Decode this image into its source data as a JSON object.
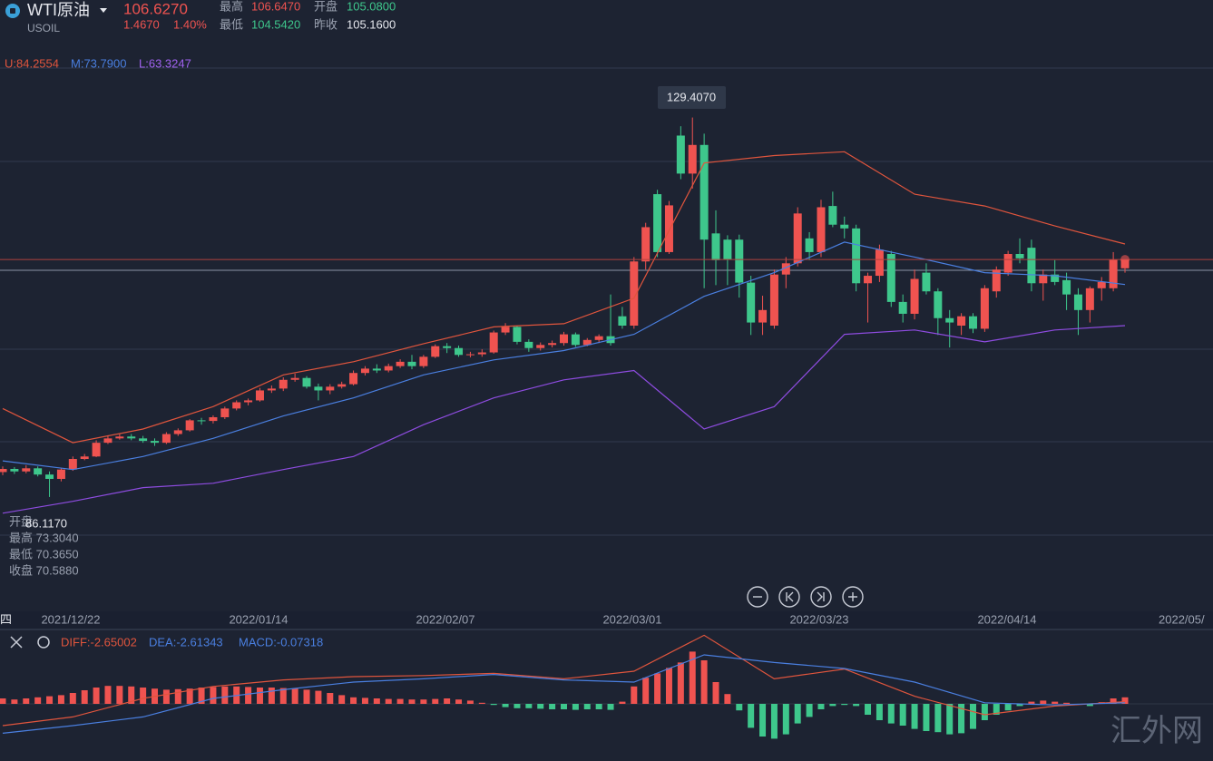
{
  "header": {
    "symbol": "WTI原油",
    "code": "USOIL",
    "price": "106.6270",
    "change": "1.4670",
    "change_pct": "1.40%",
    "high_label": "最高",
    "high": "106.6470",
    "open_label": "开盘",
    "open": "105.0800",
    "low_label": "最低",
    "low": "104.5420",
    "prev_close_label": "昨收",
    "prev_close": "105.1600"
  },
  "boll": {
    "upper": "U:84.2554",
    "middle": "M:73.7900",
    "lower": "L:63.3247"
  },
  "peak_label": "129.4070",
  "low_label": "86.1170",
  "ohlc_box": {
    "open_label": "开盘",
    "high": "最高 73.3040",
    "low": "最低 70.3650",
    "close": "收盘 70.5880"
  },
  "x_axis": [
    "四",
    "2021/12/22",
    "2022/01/14",
    "2022/02/07",
    "2022/03/01",
    "2022/03/23",
    "2022/04/14",
    "2022/05/"
  ],
  "macd_labels": {
    "diff": "DIFF:-2.65002",
    "dea": "DEA:-2.61343",
    "macd": "MACD:-0.07318"
  },
  "watermark": "汇外网",
  "chart_data": {
    "type": "candlestick",
    "up_color": "#ef5350",
    "down_color": "#3ec78c",
    "ylim": [
      50,
      142
    ],
    "candles": [
      [
        72.5,
        73.4,
        72.0,
        73.0
      ],
      [
        73.0,
        73.3,
        72.2,
        72.6
      ],
      [
        72.6,
        73.6,
        72.3,
        73.1
      ],
      [
        73.1,
        73.4,
        71.8,
        72.1
      ],
      [
        72.1,
        72.6,
        68.5,
        71.4
      ],
      [
        71.4,
        73.2,
        71.0,
        72.9
      ],
      [
        72.9,
        75.0,
        72.7,
        74.6
      ],
      [
        74.6,
        75.4,
        74.4,
        75.0
      ],
      [
        75.0,
        77.6,
        74.9,
        77.2
      ],
      [
        77.2,
        78.4,
        77.0,
        77.9
      ],
      [
        77.9,
        78.6,
        77.7,
        78.2
      ],
      [
        78.2,
        78.6,
        77.6,
        77.9
      ],
      [
        77.9,
        78.3,
        77.2,
        77.5
      ],
      [
        77.5,
        77.9,
        76.7,
        77.2
      ],
      [
        77.2,
        78.9,
        77.0,
        78.6
      ],
      [
        78.6,
        79.5,
        78.3,
        79.2
      ],
      [
        79.2,
        81.0,
        79.0,
        80.8
      ],
      [
        80.8,
        81.2,
        80.1,
        80.7
      ],
      [
        80.7,
        81.6,
        80.3,
        81.3
      ],
      [
        81.3,
        83.0,
        81.0,
        82.7
      ],
      [
        82.7,
        84.0,
        82.4,
        83.7
      ],
      [
        83.7,
        84.3,
        83.2,
        84.0
      ],
      [
        84.0,
        86.0,
        83.8,
        85.6
      ],
      [
        85.6,
        86.4,
        85.2,
        85.9
      ],
      [
        85.9,
        87.7,
        85.5,
        87.3
      ],
      [
        87.3,
        88.3,
        87.0,
        87.6
      ],
      [
        87.6,
        87.9,
        85.9,
        86.2
      ],
      [
        86.2,
        86.7,
        84.0,
        85.6
      ],
      [
        85.6,
        86.6,
        85.0,
        86.2
      ],
      [
        86.2,
        87.0,
        85.9,
        86.6
      ],
      [
        86.6,
        88.8,
        86.4,
        88.4
      ],
      [
        88.4,
        89.5,
        88.0,
        89.1
      ],
      [
        89.1,
        89.8,
        88.4,
        88.8
      ],
      [
        88.8,
        89.9,
        88.5,
        89.5
      ],
      [
        89.5,
        90.6,
        89.2,
        90.2
      ],
      [
        90.2,
        91.3,
        89.0,
        89.5
      ],
      [
        89.5,
        91.3,
        89.2,
        91.0
      ],
      [
        91.0,
        93.0,
        90.8,
        92.7
      ],
      [
        92.7,
        93.2,
        91.6,
        92.4
      ],
      [
        92.4,
        92.8,
        91.0,
        91.3
      ],
      [
        91.3,
        91.8,
        90.9,
        91.4
      ],
      [
        91.4,
        92.2,
        91.0,
        91.7
      ],
      [
        91.7,
        95.2,
        91.5,
        94.9
      ],
      [
        94.9,
        96.4,
        94.5,
        95.8
      ],
      [
        95.8,
        96.0,
        93.0,
        93.4
      ],
      [
        93.4,
        93.8,
        91.8,
        92.4
      ],
      [
        92.4,
        93.3,
        92.0,
        92.9
      ],
      [
        92.9,
        93.6,
        92.5,
        93.2
      ],
      [
        93.2,
        95.0,
        92.8,
        94.6
      ],
      [
        94.6,
        94.9,
        92.6,
        92.9
      ],
      [
        92.9,
        94.0,
        92.7,
        93.7
      ],
      [
        93.7,
        94.6,
        93.2,
        94.3
      ],
      [
        94.3,
        101.0,
        92.8,
        93.2
      ],
      [
        97.5,
        99.0,
        95.5,
        96.0
      ],
      [
        96.0,
        107.0,
        95.5,
        106.3
      ],
      [
        106.3,
        112.5,
        105.0,
        111.8
      ],
      [
        117.1,
        117.8,
        107.0,
        107.8
      ],
      [
        107.8,
        116.0,
        107.5,
        115.3
      ],
      [
        126.5,
        128.0,
        119.5,
        120.4
      ],
      [
        120.4,
        129.4,
        118.0,
        125.0
      ],
      [
        125.0,
        126.8,
        102.0,
        109.8
      ],
      [
        110.8,
        114.5,
        102.5,
        106.5
      ],
      [
        109.8,
        110.5,
        102.5,
        106.6
      ],
      [
        109.8,
        110.6,
        100.5,
        102.9
      ],
      [
        102.9,
        104.0,
        94.5,
        96.5
      ],
      [
        96.5,
        100.8,
        94.5,
        98.5
      ],
      [
        96.0,
        105.0,
        95.5,
        104.2
      ],
      [
        104.2,
        107.0,
        102.0,
        106.0
      ],
      [
        106.0,
        115.0,
        105.5,
        114.0
      ],
      [
        110.0,
        111.0,
        106.5,
        107.8
      ],
      [
        107.8,
        116.2,
        107.0,
        115.0
      ],
      [
        115.2,
        117.5,
        111.8,
        112.2
      ],
      [
        112.2,
        113.5,
        110.0,
        111.6
      ],
      [
        111.6,
        112.2,
        101.5,
        102.8
      ],
      [
        102.8,
        104.5,
        96.5,
        104.0
      ],
      [
        104.0,
        109.0,
        103.0,
        108.2
      ],
      [
        107.5,
        108.0,
        99.0,
        99.8
      ],
      [
        99.8,
        101.0,
        96.5,
        97.9
      ],
      [
        97.9,
        105.0,
        97.0,
        103.5
      ],
      [
        104.5,
        106.0,
        101.0,
        101.5
      ],
      [
        101.5,
        102.0,
        94.5,
        97.2
      ],
      [
        97.2,
        98.5,
        92.5,
        96.5
      ],
      [
        96.0,
        98.0,
        94.5,
        97.5
      ],
      [
        97.5,
        98.0,
        94.8,
        95.5
      ],
      [
        95.5,
        102.5,
        95.0,
        102.0
      ],
      [
        101.5,
        105.5,
        100.5,
        105.0
      ],
      [
        104.5,
        108.0,
        104.0,
        107.5
      ],
      [
        107.5,
        110.0,
        106.0,
        106.8
      ],
      [
        108.5,
        109.8,
        101.5,
        102.8
      ],
      [
        102.8,
        105.0,
        100.0,
        104.2
      ],
      [
        104.2,
        106.5,
        102.5,
        103.0
      ],
      [
        103.3,
        104.5,
        98.5,
        101.0
      ],
      [
        101.0,
        102.0,
        94.5,
        98.5
      ],
      [
        98.5,
        102.3,
        96.5,
        102.0
      ],
      [
        102.0,
        103.8,
        100.0,
        103.0
      ],
      [
        102.0,
        107.8,
        101.5,
        106.6
      ],
      [
        105.2,
        106.6,
        104.5,
        106.6
      ]
    ],
    "x": [
      0,
      6,
      12,
      18,
      24,
      30,
      36,
      42,
      48,
      54,
      60,
      66,
      72,
      78,
      84,
      90,
      96
    ],
    "series": [
      {
        "color": "#e0553d",
        "values": [
          82.7,
          77.2,
          79.4,
          83.0,
          88.1,
          90.2,
          93.1,
          95.8,
          96.3,
          100.4,
          122.1,
          123.3,
          123.9,
          117.1,
          115.2,
          112.0,
          109.1
        ]
      },
      {
        "color": "#4a7fe0",
        "values": [
          74.3,
          72.9,
          75.0,
          77.9,
          81.5,
          84.4,
          88.1,
          90.5,
          92.0,
          94.6,
          100.7,
          104.5,
          109.4,
          107.0,
          104.5,
          104.0,
          102.6
        ]
      },
      {
        "color": "#8e4ce0",
        "values": [
          65.9,
          67.8,
          70.0,
          70.7,
          72.9,
          75.0,
          80.1,
          84.4,
          87.3,
          88.8,
          79.4,
          83.0,
          94.6,
          95.3,
          93.4,
          95.3,
          96.0
        ]
      }
    ],
    "macd": {
      "ylim": [
        -5.25,
        6.75
      ],
      "histogram": [
        0.5,
        0.4,
        0.5,
        0.6,
        0.7,
        0.8,
        1.0,
        1.25,
        1.5,
        1.65,
        1.65,
        1.6,
        1.5,
        1.4,
        1.3,
        1.35,
        1.4,
        1.5,
        1.55,
        1.6,
        1.6,
        1.55,
        1.5,
        1.5,
        1.45,
        1.4,
        1.3,
        1.2,
        1.0,
        0.8,
        0.6,
        0.55,
        0.5,
        0.45,
        0.45,
        0.4,
        0.4,
        0.45,
        0.5,
        0.4,
        0.3,
        0.1,
        -0.1,
        -0.3,
        -0.4,
        -0.4,
        -0.45,
        -0.5,
        -0.5,
        -0.55,
        -0.5,
        -0.5,
        -0.55,
        0.2,
        1.6,
        2.4,
        2.8,
        3.3,
        3.8,
        4.8,
        4.0,
        2.0,
        0.9,
        -0.6,
        -2.2,
        -3.0,
        -3.2,
        -2.8,
        -1.8,
        -1.2,
        -0.5,
        -0.2,
        -0.1,
        -0.2,
        -1.0,
        -1.5,
        -1.8,
        -2.0,
        -2.3,
        -2.5,
        -2.6,
        -2.8,
        -2.7,
        -2.3,
        -1.5,
        -1.0,
        -0.6,
        -0.2,
        0.2,
        0.3,
        0.2,
        0.1,
        0.0,
        -0.2,
        0.15,
        0.5,
        0.6
      ],
      "series": [
        {
          "color": "#e0553d",
          "values": [
            -2.0,
            -1.2,
            0.5,
            1.6,
            2.2,
            2.5,
            2.6,
            2.8,
            2.3,
            3.0,
            6.3,
            2.3,
            3.2,
            0.7,
            -1.0,
            -0.2,
            0.2
          ]
        },
        {
          "color": "#4a7fe0",
          "values": [
            -2.7,
            -2.0,
            -1.2,
            0.5,
            1.3,
            2.0,
            2.3,
            2.7,
            2.2,
            2.0,
            4.5,
            3.8,
            3.25,
            2.0,
            0.1,
            -0.1,
            0.1
          ]
        }
      ]
    }
  }
}
